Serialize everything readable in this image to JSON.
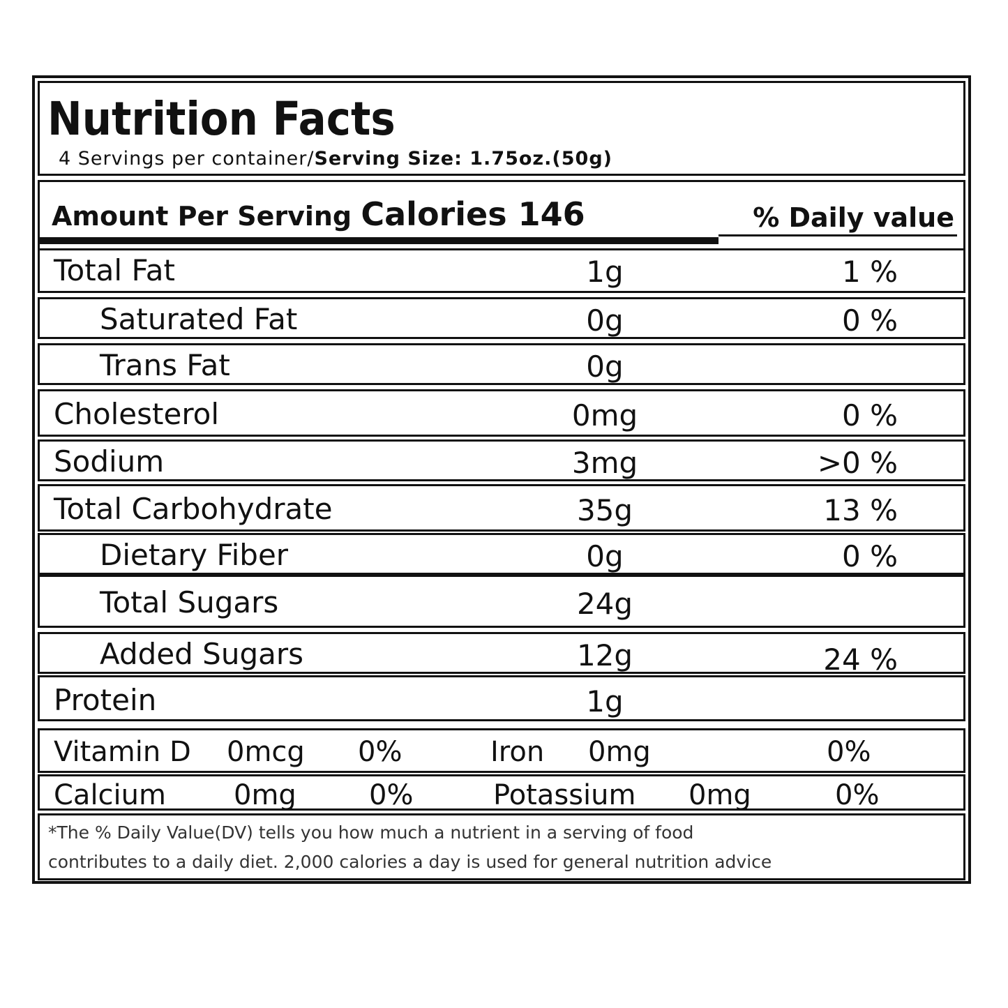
{
  "header": {
    "title": "Nutrition Facts",
    "servings": "4 Servings per container/",
    "serving_size": "Serving Size: 1.75oz.(50g)"
  },
  "amount": {
    "label": "Amount Per Serving",
    "calories": "Calories 146",
    "dv_label": "% Daily value"
  },
  "nutrients": [
    {
      "name": "Total Fat",
      "amount": "1g",
      "dv": "1 %"
    },
    {
      "name": "Saturated Fat",
      "amount": "0g",
      "dv": "0 %"
    },
    {
      "name": "Trans Fat",
      "amount": "0g",
      "dv": ""
    },
    {
      "name": "Cholesterol",
      "amount": "0mg",
      "dv": "0 %"
    },
    {
      "name": "Sodium",
      "amount": "3mg",
      "dv": ">0 %"
    },
    {
      "name": "Total Carbohydrate",
      "amount": "35g",
      "dv": "13 %"
    },
    {
      "name": "Dietary Fiber",
      "amount": "0g",
      "dv": "0 %"
    },
    {
      "name": "Total Sugars",
      "amount": "24g",
      "dv": ""
    },
    {
      "name": "Added Sugars",
      "amount": "12g",
      "dv": "24 %"
    },
    {
      "name": "Protein",
      "amount": "1g",
      "dv": ""
    }
  ],
  "vitamins": {
    "row1": {
      "n1": "Vitamin D",
      "a1": "0mcg",
      "p1": "0%",
      "n2": "Iron",
      "a2": "0mg",
      "p2": "0%"
    },
    "row2": {
      "n1": "Calcium",
      "a1": "0mg",
      "p1": "0%",
      "n2": "Potassium",
      "a2": "0mg",
      "p2": "0%"
    }
  },
  "footnote": {
    "line1": "*The % Daily Value(DV) tells you how much a nutrient in a serving of food",
    "line2": "contributes to a daily diet. 2,000 calories a day is used for general nutrition advice"
  }
}
